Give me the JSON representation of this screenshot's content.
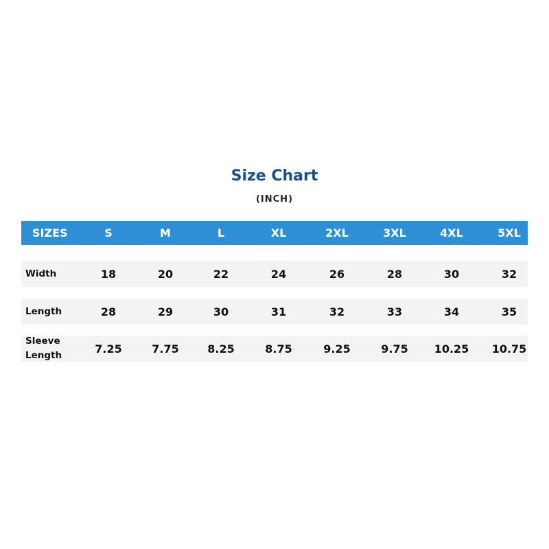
{
  "title": "Size Chart",
  "unit": "(INCH)",
  "colors": {
    "header_bg": "#2e8fd4",
    "title": "#1b4f8a",
    "row_bg": "#f3f3f3"
  },
  "header": {
    "label": "SIZES",
    "sizes": [
      "S",
      "M",
      "L",
      "XL",
      "2XL",
      "3XL",
      "4XL",
      "5XL"
    ]
  },
  "rows": [
    {
      "label": "Width",
      "values": [
        "18",
        "20",
        "22",
        "24",
        "26",
        "28",
        "30",
        "32"
      ]
    },
    {
      "label": "Length",
      "values": [
        "28",
        "29",
        "30",
        "31",
        "32",
        "33",
        "34",
        "35"
      ]
    },
    {
      "label": "Sleeve Length",
      "values": [
        "7.25",
        "7.75",
        "8.25",
        "8.75",
        "9.25",
        "9.75",
        "10.25",
        "10.75"
      ]
    }
  ]
}
